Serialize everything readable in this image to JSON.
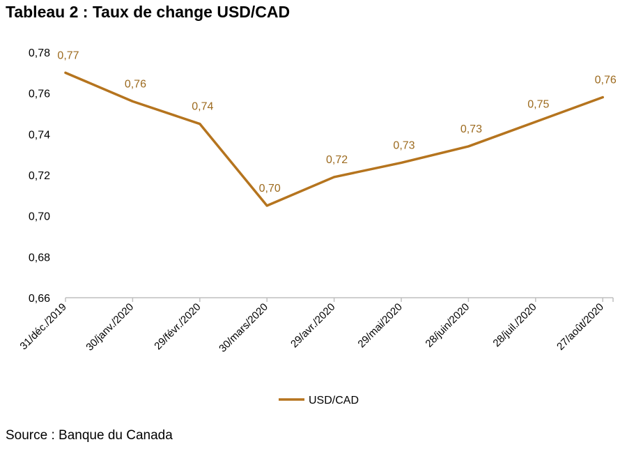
{
  "title": "Tableau 2 : Taux de change USD/CAD",
  "source": "Source : Banque du Canada",
  "chart_data": {
    "type": "line",
    "title": "Tableau 2 : Taux de change USD/CAD",
    "xlabel": "",
    "ylabel": "",
    "categories": [
      "31/déc./2019",
      "30/janv./2020",
      "29/févr./2020",
      "30/mars/2020",
      "29/avr./2020",
      "29/mai/2020",
      "28/juin/2020",
      "28/juil./2020",
      "27/août/2020"
    ],
    "series": [
      {
        "name": "USD/CAD",
        "values": [
          0.77,
          0.756,
          0.745,
          0.705,
          0.719,
          0.726,
          0.734,
          0.746,
          0.758
        ],
        "data_labels": [
          "0,77",
          "0,76",
          "0,74",
          "0,70",
          "0,72",
          "0,73",
          "0,73",
          "0,75",
          "0,76"
        ]
      }
    ],
    "ylim": [
      0.66,
      0.78
    ],
    "y_ticks": [
      "0,66",
      "0,68",
      "0,70",
      "0,72",
      "0,74",
      "0,76",
      "0,78"
    ],
    "grid": false,
    "legend_position": "bottom-center",
    "colors": {
      "line": "#B5741E",
      "label": "#9C6A1E",
      "axis": "#BFBFBF"
    }
  }
}
